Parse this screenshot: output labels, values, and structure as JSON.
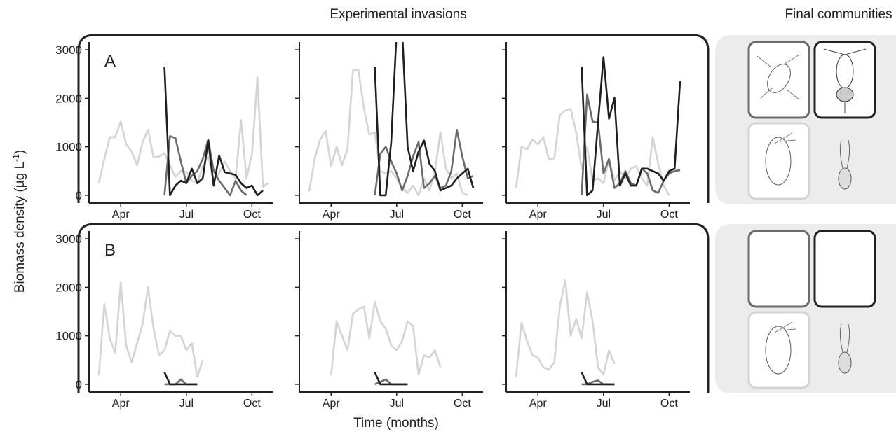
{
  "title": "Experimental invasions",
  "right_title": "Final communities",
  "ylabel": {
    "text": "Biomass density (µg L",
    "sup": "-1",
    "end": ")"
  },
  "xlabel": "Time (months)",
  "chart_data": [
    {
      "type": "line",
      "panel_label": "A",
      "show_ytick_labels": true,
      "x": [
        3,
        3.25,
        3.5,
        3.75,
        4,
        4.25,
        4.5,
        4.75,
        5,
        5.25,
        5.5,
        5.75,
        6,
        6.25,
        6.5,
        6.75,
        7,
        7.25,
        7.5,
        7.75,
        8,
        8.25,
        8.5,
        8.75,
        9,
        9.25,
        9.5,
        9.75,
        10,
        10.25,
        10.5,
        10.75
      ],
      "xlim": [
        2.55,
        10.95
      ],
      "ylim": [
        -160,
        3160
      ],
      "xticks": [
        {
          "value": 4,
          "label": "Apr"
        },
        {
          "value": 7,
          "label": "Jul"
        },
        {
          "value": 10,
          "label": "Oct"
        }
      ],
      "yticks": [
        0,
        1000,
        2000,
        3000
      ],
      "series": [
        {
          "color": "#d4d4d4",
          "values": [
            250,
            750,
            1200,
            1200,
            1520,
            1050,
            900,
            620,
            1100,
            1350,
            780,
            800,
            870,
            620,
            380,
            500,
            480,
            300,
            250,
            600,
            800,
            300,
            450,
            700,
            500,
            350,
            1550,
            350,
            850,
            2430,
            180,
            250
          ]
        },
        {
          "color": "#6b6b6b",
          "values": [
            null,
            null,
            null,
            null,
            null,
            null,
            null,
            null,
            null,
            null,
            null,
            null,
            0,
            1220,
            1180,
            700,
            250,
            400,
            500,
            750,
            1150,
            500,
            300,
            150,
            0,
            300,
            100,
            0,
            null,
            null,
            null,
            null
          ]
        },
        {
          "color": "#1f1f1f",
          "values": [
            null,
            null,
            null,
            null,
            null,
            null,
            null,
            null,
            null,
            null,
            null,
            null,
            2650,
            0,
            200,
            300,
            250,
            550,
            250,
            350,
            1130,
            200,
            820,
            480,
            450,
            420,
            250,
            150,
            200,
            0,
            100,
            null
          ]
        }
      ]
    },
    {
      "type": "line",
      "show_ytick_labels": false,
      "x": [
        3,
        3.25,
        3.5,
        3.75,
        4,
        4.25,
        4.5,
        4.75,
        5,
        5.25,
        5.5,
        5.75,
        6,
        6.25,
        6.5,
        6.75,
        7,
        7.25,
        7.5,
        7.75,
        8,
        8.25,
        8.5,
        8.75,
        9,
        9.25,
        9.5,
        9.75,
        10,
        10.25,
        10.5,
        10.75
      ],
      "xlim": [
        2.55,
        10.95
      ],
      "ylim": [
        -160,
        3160
      ],
      "xticks": [
        {
          "value": 4,
          "label": "Apr"
        },
        {
          "value": 7,
          "label": "Jul"
        },
        {
          "value": 10,
          "label": "Oct"
        }
      ],
      "yticks": [
        0,
        1000,
        2000,
        3000
      ],
      "series": [
        {
          "color": "#d4d4d4",
          "values": [
            80,
            750,
            1150,
            1330,
            600,
            1000,
            620,
            950,
            2570,
            2580,
            1800,
            1250,
            1300,
            500,
            450,
            500,
            350,
            150,
            50,
            200,
            0,
            350,
            100,
            500,
            1300,
            550,
            350,
            450,
            50,
            0,
            null,
            null
          ]
        },
        {
          "color": "#6b6b6b",
          "values": [
            null,
            null,
            null,
            null,
            null,
            null,
            null,
            null,
            null,
            null,
            null,
            null,
            0,
            850,
            1000,
            700,
            450,
            100,
            400,
            800,
            1100,
            150,
            250,
            400,
            150,
            200,
            500,
            1350,
            800,
            350,
            400,
            null
          ]
        },
        {
          "color": "#1f1f1f",
          "values": [
            null,
            null,
            null,
            null,
            null,
            null,
            null,
            null,
            null,
            null,
            null,
            null,
            2650,
            0,
            0,
            1100,
            3400,
            3400,
            1000,
            500,
            900,
            1130,
            650,
            500,
            100,
            150,
            200,
            350,
            450,
            550,
            150,
            null
          ]
        }
      ]
    },
    {
      "type": "line",
      "show_ytick_labels": false,
      "x": [
        3,
        3.25,
        3.5,
        3.75,
        4,
        4.25,
        4.5,
        4.75,
        5,
        5.25,
        5.5,
        5.75,
        6,
        6.25,
        6.5,
        6.75,
        7,
        7.25,
        7.5,
        7.75,
        8,
        8.25,
        8.5,
        8.75,
        9,
        9.25,
        9.5,
        9.75,
        10,
        10.25,
        10.5,
        10.75
      ],
      "xlim": [
        2.55,
        10.95
      ],
      "ylim": [
        -160,
        3160
      ],
      "xticks": [
        {
          "value": 4,
          "label": "Apr"
        },
        {
          "value": 7,
          "label": "Jul"
        },
        {
          "value": 10,
          "label": "Oct"
        }
      ],
      "yticks": [
        0,
        1000,
        2000,
        3000
      ],
      "series": [
        {
          "color": "#d4d4d4",
          "values": [
            150,
            1000,
            950,
            1150,
            1050,
            1200,
            750,
            760,
            1650,
            1750,
            1780,
            1300,
            550,
            1000,
            300,
            350,
            250,
            750,
            300,
            500,
            350,
            550,
            600,
            350,
            200,
            1200,
            650,
            200,
            0,
            null,
            null,
            null
          ]
        },
        {
          "color": "#6b6b6b",
          "values": [
            null,
            null,
            null,
            null,
            null,
            null,
            null,
            null,
            null,
            null,
            null,
            null,
            0,
            2080,
            1520,
            1500,
            450,
            750,
            150,
            250,
            500,
            250,
            200,
            550,
            450,
            100,
            50,
            300,
            450,
            500,
            520,
            null
          ]
        },
        {
          "color": "#1f1f1f",
          "values": [
            null,
            null,
            null,
            null,
            null,
            null,
            null,
            null,
            null,
            null,
            null,
            null,
            2650,
            0,
            100,
            1500,
            2850,
            1580,
            2010,
            200,
            450,
            200,
            200,
            550,
            550,
            500,
            450,
            300,
            500,
            550,
            2350,
            null
          ]
        }
      ]
    },
    {
      "type": "line",
      "panel_label": "B",
      "show_ytick_labels": true,
      "x": [
        3,
        3.25,
        3.5,
        3.75,
        4,
        4.25,
        4.5,
        4.75,
        5,
        5.25,
        5.5,
        5.75,
        6,
        6.25,
        6.5,
        6.75,
        7,
        7.25,
        7.5,
        7.75,
        8,
        8.25,
        8.5,
        8.75,
        9,
        9.25,
        9.5,
        9.75,
        10,
        10.25,
        10.5,
        10.75
      ],
      "xlim": [
        2.55,
        10.95
      ],
      "ylim": [
        -160,
        3160
      ],
      "xticks": [
        {
          "value": 4,
          "label": "Apr"
        },
        {
          "value": 7,
          "label": "Jul"
        },
        {
          "value": 10,
          "label": "Oct"
        }
      ],
      "yticks": [
        0,
        1000,
        2000,
        3000
      ],
      "series": [
        {
          "color": "#d4d4d4",
          "values": [
            180,
            1650,
            950,
            650,
            2100,
            800,
            450,
            850,
            1250,
            2000,
            1150,
            600,
            700,
            1100,
            1000,
            1000,
            700,
            850,
            150,
            500,
            null,
            null,
            null,
            null,
            null,
            null,
            null,
            null,
            null,
            null,
            null,
            null
          ]
        },
        {
          "color": "#6b6b6b",
          "values": [
            null,
            null,
            null,
            null,
            null,
            null,
            null,
            null,
            null,
            null,
            null,
            null,
            0,
            0,
            0,
            100,
            0,
            0,
            0,
            null,
            null,
            null,
            null,
            null,
            null,
            null,
            null,
            null,
            null,
            null,
            null,
            null
          ]
        },
        {
          "color": "#1f1f1f",
          "values": [
            null,
            null,
            null,
            null,
            null,
            null,
            null,
            null,
            null,
            null,
            null,
            null,
            250,
            0,
            0,
            0,
            0,
            0,
            0,
            null,
            null,
            null,
            null,
            null,
            null,
            null,
            null,
            null,
            null,
            null,
            null,
            null
          ]
        }
      ]
    },
    {
      "type": "line",
      "show_ytick_labels": false,
      "x": [
        3,
        3.25,
        3.5,
        3.75,
        4,
        4.25,
        4.5,
        4.75,
        5,
        5.25,
        5.5,
        5.75,
        6,
        6.25,
        6.5,
        6.75,
        7,
        7.25,
        7.5,
        7.75,
        8,
        8.25,
        8.5,
        8.75,
        9,
        9.25,
        9.5,
        9.75,
        10,
        10.25,
        10.5,
        10.75
      ],
      "xlim": [
        2.55,
        10.95
      ],
      "ylim": [
        -160,
        3160
      ],
      "xticks": [
        {
          "value": 4,
          "label": "Apr"
        },
        {
          "value": 7,
          "label": "Jul"
        },
        {
          "value": 10,
          "label": "Oct"
        }
      ],
      "yticks": [
        0,
        1000,
        2000,
        3000
      ],
      "series": [
        {
          "color": "#d4d4d4",
          "values": [
            null,
            null,
            null,
            null,
            180,
            1300,
            1000,
            700,
            1450,
            1550,
            1600,
            950,
            1700,
            1300,
            1150,
            800,
            700,
            900,
            1300,
            1200,
            200,
            600,
            550,
            700,
            350,
            null,
            null,
            null,
            null,
            null,
            null,
            null
          ]
        },
        {
          "color": "#6b6b6b",
          "values": [
            null,
            null,
            null,
            null,
            null,
            null,
            null,
            null,
            null,
            null,
            null,
            null,
            0,
            50,
            100,
            0,
            0,
            0,
            0,
            null,
            null,
            null,
            null,
            null,
            null,
            null,
            null,
            null,
            null,
            null,
            null,
            null
          ]
        },
        {
          "color": "#1f1f1f",
          "values": [
            null,
            null,
            null,
            null,
            null,
            null,
            null,
            null,
            null,
            null,
            null,
            null,
            250,
            0,
            0,
            0,
            0,
            0,
            0,
            null,
            null,
            null,
            null,
            null,
            null,
            null,
            null,
            null,
            null,
            null,
            null,
            null
          ]
        }
      ]
    },
    {
      "type": "line",
      "show_ytick_labels": false,
      "x": [
        3,
        3.25,
        3.5,
        3.75,
        4,
        4.25,
        4.5,
        4.75,
        5,
        5.25,
        5.5,
        5.75,
        6,
        6.25,
        6.5,
        6.75,
        7,
        7.25,
        7.5,
        7.75,
        8,
        8.25,
        8.5,
        8.75,
        9,
        9.25,
        9.5,
        9.75,
        10,
        10.25,
        10.5,
        10.75
      ],
      "xlim": [
        2.55,
        10.95
      ],
      "ylim": [
        -160,
        3160
      ],
      "xticks": [
        {
          "value": 4,
          "label": "Apr"
        },
        {
          "value": 7,
          "label": "Jul"
        },
        {
          "value": 10,
          "label": "Oct"
        }
      ],
      "yticks": [
        0,
        1000,
        2000,
        3000
      ],
      "series": [
        {
          "color": "#d4d4d4",
          "values": [
            150,
            1270,
            900,
            600,
            550,
            350,
            300,
            450,
            1600,
            2150,
            1000,
            1350,
            950,
            1900,
            1300,
            350,
            200,
            700,
            420,
            null,
            null,
            null,
            null,
            null,
            null,
            null,
            null,
            null,
            null,
            null,
            null,
            null
          ]
        },
        {
          "color": "#6b6b6b",
          "values": [
            null,
            null,
            null,
            null,
            null,
            null,
            null,
            null,
            null,
            null,
            null,
            null,
            0,
            0,
            50,
            80,
            0,
            0,
            0,
            null,
            null,
            null,
            null,
            null,
            null,
            null,
            null,
            null,
            null,
            null,
            null,
            null
          ]
        },
        {
          "color": "#1f1f1f",
          "values": [
            null,
            null,
            null,
            null,
            null,
            null,
            null,
            null,
            null,
            null,
            null,
            null,
            250,
            0,
            0,
            0,
            0,
            0,
            0,
            null,
            null,
            null,
            null,
            null,
            null,
            null,
            null,
            null,
            null,
            null,
            null,
            null
          ]
        }
      ]
    }
  ]
}
